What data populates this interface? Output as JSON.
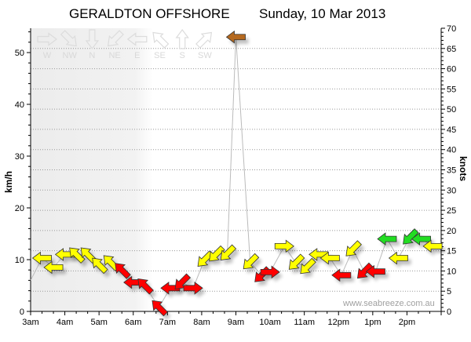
{
  "title": {
    "location": "GERALDTON OFFSHORE",
    "date": "Sunday, 10 Mar 2013"
  },
  "watermark": "www.seabreeze.com.au",
  "palette": {
    "yellow": "#ffff00",
    "red": "#ff0000",
    "green": "#22dd22",
    "brown": "#b5691f"
  },
  "legend": [
    {
      "label": "W",
      "dir": "W"
    },
    {
      "label": "NW",
      "dir": "NW"
    },
    {
      "label": "N",
      "dir": "N"
    },
    {
      "label": "NE",
      "dir": "NE"
    },
    {
      "label": "E",
      "dir": "E"
    },
    {
      "label": "SE",
      "dir": "SE"
    },
    {
      "label": "S",
      "dir": "S"
    },
    {
      "label": "SW",
      "dir": "SW"
    }
  ],
  "chart_data": {
    "type": "line",
    "title": "GERALDTON OFFSHORE  Sunday, 10 Mar 2013",
    "xlabel": "",
    "ylabel": "km/h",
    "y2label": "knots",
    "xlim": [
      "03:00",
      "15:00"
    ],
    "ylim": [
      0,
      54.7
    ],
    "y2lim": [
      0,
      70
    ],
    "night_shade_until": "06:35",
    "grid": true,
    "x_ticks": [
      "3am",
      "4am",
      "5am",
      "6am",
      "7am",
      "8am",
      "9am",
      "10am",
      "11am",
      "12pm",
      "1pm",
      "2pm"
    ],
    "y_ticks": [
      0,
      10,
      20,
      30,
      40,
      50
    ],
    "y2_ticks": [
      0,
      5,
      10,
      15,
      20,
      25,
      30,
      35,
      40,
      45,
      50,
      55,
      60,
      65,
      70
    ],
    "points": [
      {
        "time": "03:00",
        "kmh": 6,
        "dir": null,
        "color": null
      },
      {
        "time": "03:20",
        "kmh": 10.3,
        "dir": "E",
        "color": "yellow"
      },
      {
        "time": "03:40",
        "kmh": 8.5,
        "dir": "E",
        "color": "yellow"
      },
      {
        "time": "04:00",
        "kmh": 11,
        "dir": "E",
        "color": "yellow"
      },
      {
        "time": "04:20",
        "kmh": 11,
        "dir": "SE",
        "color": "yellow"
      },
      {
        "time": "04:40",
        "kmh": 11,
        "dir": "SE",
        "color": "yellow"
      },
      {
        "time": "05:00",
        "kmh": 9,
        "dir": "SE",
        "color": "yellow"
      },
      {
        "time": "05:20",
        "kmh": 9.5,
        "dir": "SE",
        "color": "yellow"
      },
      {
        "time": "05:40",
        "kmh": 8,
        "dir": "SE",
        "color": "red"
      },
      {
        "time": "06:00",
        "kmh": 5.6,
        "dir": "E",
        "color": "red"
      },
      {
        "time": "06:20",
        "kmh": 5,
        "dir": "SE",
        "color": "red"
      },
      {
        "time": "06:45",
        "kmh": 0.8,
        "dir": "SE",
        "color": "red"
      },
      {
        "time": "07:05",
        "kmh": 4.5,
        "dir": "E",
        "color": "red"
      },
      {
        "time": "07:25",
        "kmh": 5.6,
        "dir": "NE",
        "color": "red"
      },
      {
        "time": "07:45",
        "kmh": 4.5,
        "dir": "W",
        "color": "red"
      },
      {
        "time": "08:05",
        "kmh": 10,
        "dir": "NE",
        "color": "yellow"
      },
      {
        "time": "08:25",
        "kmh": 11,
        "dir": "NE",
        "color": "yellow"
      },
      {
        "time": "08:45",
        "kmh": 11.2,
        "dir": "NE",
        "color": "yellow"
      },
      {
        "time": "09:00",
        "kmh": 53,
        "dir": "E",
        "color": "brown"
      },
      {
        "time": "09:25",
        "kmh": 9.5,
        "dir": "NE",
        "color": "yellow"
      },
      {
        "time": "09:45",
        "kmh": 7,
        "dir": "NE",
        "color": "red"
      },
      {
        "time": "10:00",
        "kmh": 7.6,
        "dir": "W",
        "color": "red"
      },
      {
        "time": "10:25",
        "kmh": 12.6,
        "dir": "W",
        "color": "yellow"
      },
      {
        "time": "10:45",
        "kmh": 9.4,
        "dir": "NE",
        "color": "yellow"
      },
      {
        "time": "11:05",
        "kmh": 8.6,
        "dir": "NE",
        "color": "yellow"
      },
      {
        "time": "11:25",
        "kmh": 11,
        "dir": "E",
        "color": "yellow"
      },
      {
        "time": "11:45",
        "kmh": 10.3,
        "dir": "E",
        "color": "yellow"
      },
      {
        "time": "12:05",
        "kmh": 7,
        "dir": "E",
        "color": "red"
      },
      {
        "time": "12:25",
        "kmh": 12,
        "dir": "NE",
        "color": "yellow"
      },
      {
        "time": "12:45",
        "kmh": 7.7,
        "dir": "NE",
        "color": "red"
      },
      {
        "time": "13:05",
        "kmh": 7.7,
        "dir": "E",
        "color": "red"
      },
      {
        "time": "13:25",
        "kmh": 14,
        "dir": "E",
        "color": "green"
      },
      {
        "time": "13:45",
        "kmh": 10.3,
        "dir": "E",
        "color": "yellow"
      },
      {
        "time": "14:05",
        "kmh": 14.3,
        "dir": "NE",
        "color": "green"
      },
      {
        "time": "14:25",
        "kmh": 14,
        "dir": "E",
        "color": "green"
      },
      {
        "time": "14:45",
        "kmh": 12.6,
        "dir": "E",
        "color": "yellow"
      }
    ]
  }
}
